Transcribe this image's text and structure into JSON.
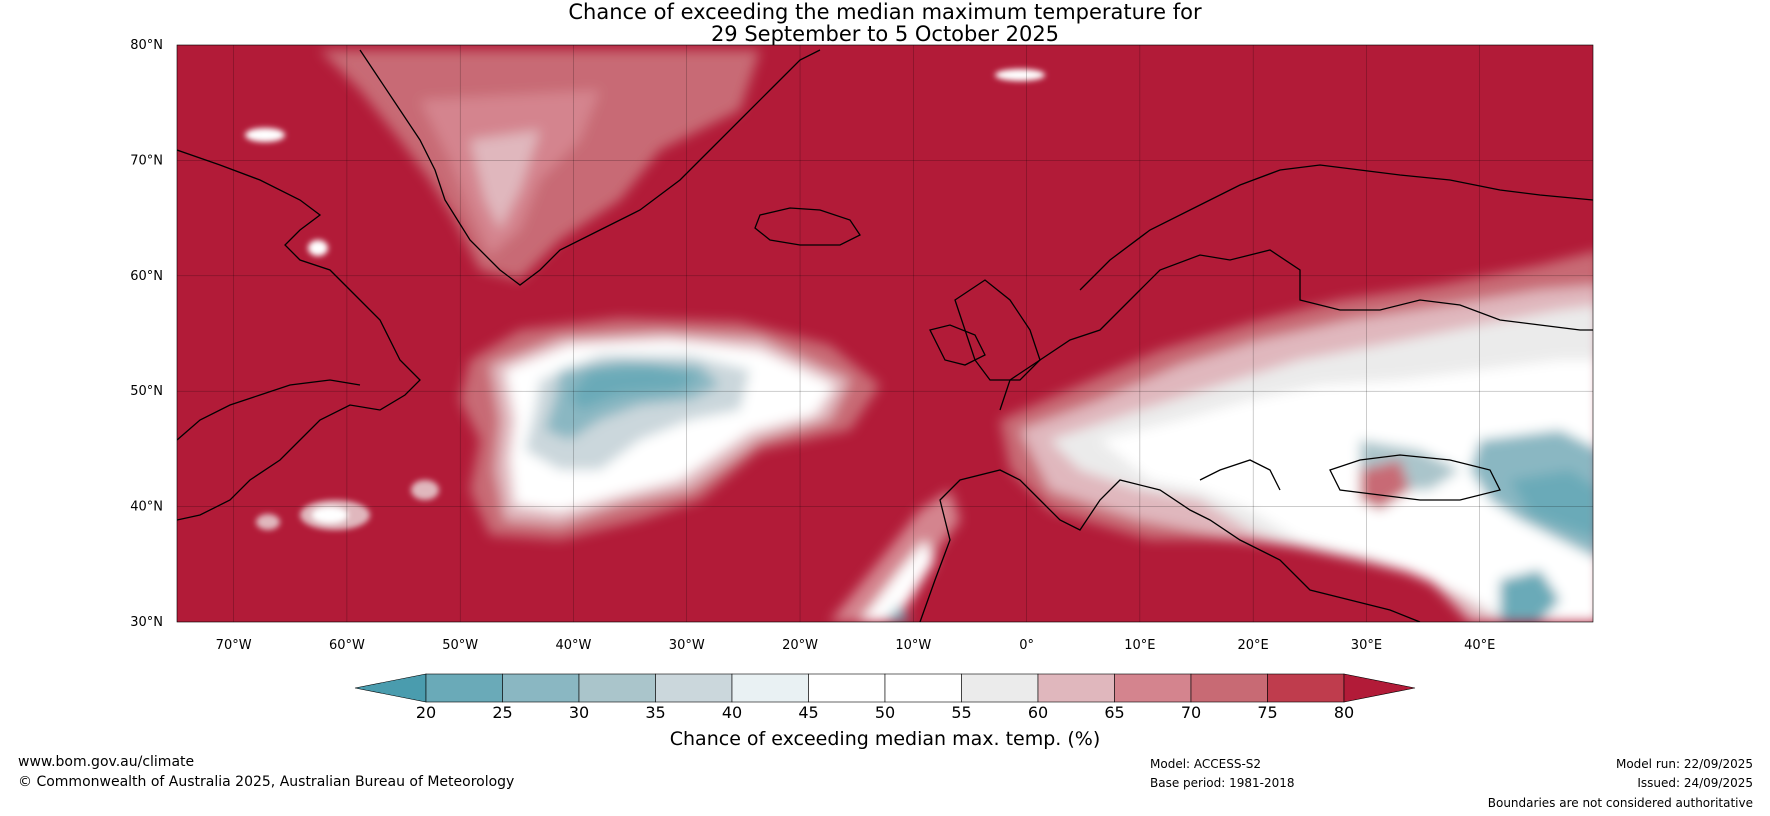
{
  "title": {
    "line1": "Chance of exceeding the median maximum temperature for",
    "line2": "29 September to 5 October 2025"
  },
  "map": {
    "lat_range": [
      30,
      80
    ],
    "lon_range": [
      -75,
      50
    ],
    "lat_ticks": [
      "80°N",
      "70°N",
      "60°N",
      "50°N",
      "40°N",
      "30°N"
    ],
    "lon_ticks": [
      "70°W",
      "60°W",
      "50°W",
      "40°W",
      "30°W",
      "20°W",
      "10°W",
      "0°",
      "10°E",
      "20°E",
      "30°E",
      "40°E"
    ],
    "background_color": "#b21b38",
    "cool_anomaly_regions": [
      "North Atlantic (45–55°N, 20–50°W)",
      "Black Sea / Turkey",
      "Middle East (30–40°N, 40–50°E)"
    ],
    "neutral_regions": [
      "Central and Eastern Europe",
      "Western Russia"
    ]
  },
  "colorbar": {
    "ticks": [
      "20",
      "25",
      "30",
      "35",
      "40",
      "45",
      "50",
      "55",
      "60",
      "65",
      "70",
      "75",
      "80"
    ],
    "colors": [
      "#4a9cae",
      "#6aaab8",
      "#8ab7c2",
      "#aac5cb",
      "#cbd7dc",
      "#e9f1f3",
      "#ffffff",
      "#ffffff",
      "#ebebeb",
      "#e0b7bd",
      "#d4848e",
      "#c86a74",
      "#bf3c4d",
      "#b21b38"
    ],
    "label": "Chance of exceeding median max. temp. (%)"
  },
  "footer": {
    "url": "www.bom.gov.au/climate",
    "copyright": "© Commonwealth of Australia 2025, Australian Bureau of Meteorology",
    "model": "Model: ACCESS-S2",
    "base_period": "Base period: 1981-2018",
    "model_run": "Model run: 22/09/2025",
    "issued": "Issued: 24/09/2025",
    "disclaimer": "Boundaries are not considered authoritative"
  }
}
